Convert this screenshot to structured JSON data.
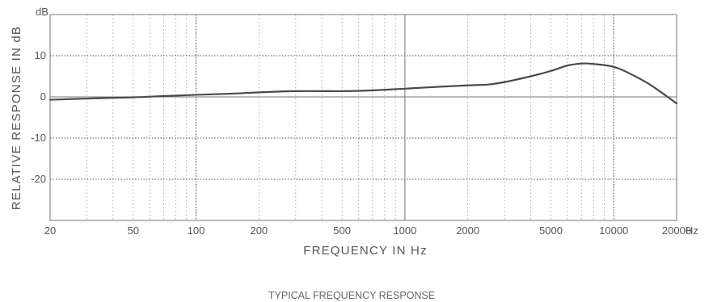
{
  "chart_data": {
    "type": "line",
    "title": "TYPICAL FREQUENCY RESPONSE",
    "xlabel": "FREQUENCY IN Hz",
    "ylabel": "RELATIVE RESPONSE IN dB",
    "y_unit": "dB",
    "x_unit": "Hz",
    "x_scale": "log",
    "xlim": [
      20,
      20000
    ],
    "ylim": [
      -30,
      20
    ],
    "grid": true,
    "x_ticks": [
      {
        "value": 20,
        "label": "20"
      },
      {
        "value": 50,
        "label": "50"
      },
      {
        "value": 100,
        "label": "100"
      },
      {
        "value": 200,
        "label": "200"
      },
      {
        "value": 500,
        "label": "500"
      },
      {
        "value": 1000,
        "label": "1000"
      },
      {
        "value": 2000,
        "label": "2000"
      },
      {
        "value": 5000,
        "label": "5000"
      },
      {
        "value": 10000,
        "label": "10000"
      },
      {
        "value": 20000,
        "label": "20000"
      }
    ],
    "y_ticks": [
      {
        "value": 10,
        "label": "10"
      },
      {
        "value": 0,
        "label": "0"
      },
      {
        "value": -10,
        "label": "-10"
      },
      {
        "value": -20,
        "label": "-20"
      }
    ],
    "series": [
      {
        "color": "#4a4a4a",
        "x": [
          20,
          30,
          50,
          70,
          100,
          150,
          200,
          250,
          300,
          400,
          500,
          700,
          1000,
          1500,
          2000,
          2500,
          3000,
          4000,
          5000,
          6000,
          7000,
          8000,
          10000,
          12000,
          15000,
          20000
        ],
        "y": [
          -0.7,
          -0.4,
          -0.1,
          0.2,
          0.5,
          0.8,
          1.1,
          1.3,
          1.4,
          1.4,
          1.4,
          1.6,
          2.0,
          2.5,
          2.8,
          3.0,
          3.6,
          5.0,
          6.3,
          7.6,
          8.1,
          8.0,
          7.3,
          5.6,
          2.9,
          -1.6
        ]
      }
    ]
  }
}
